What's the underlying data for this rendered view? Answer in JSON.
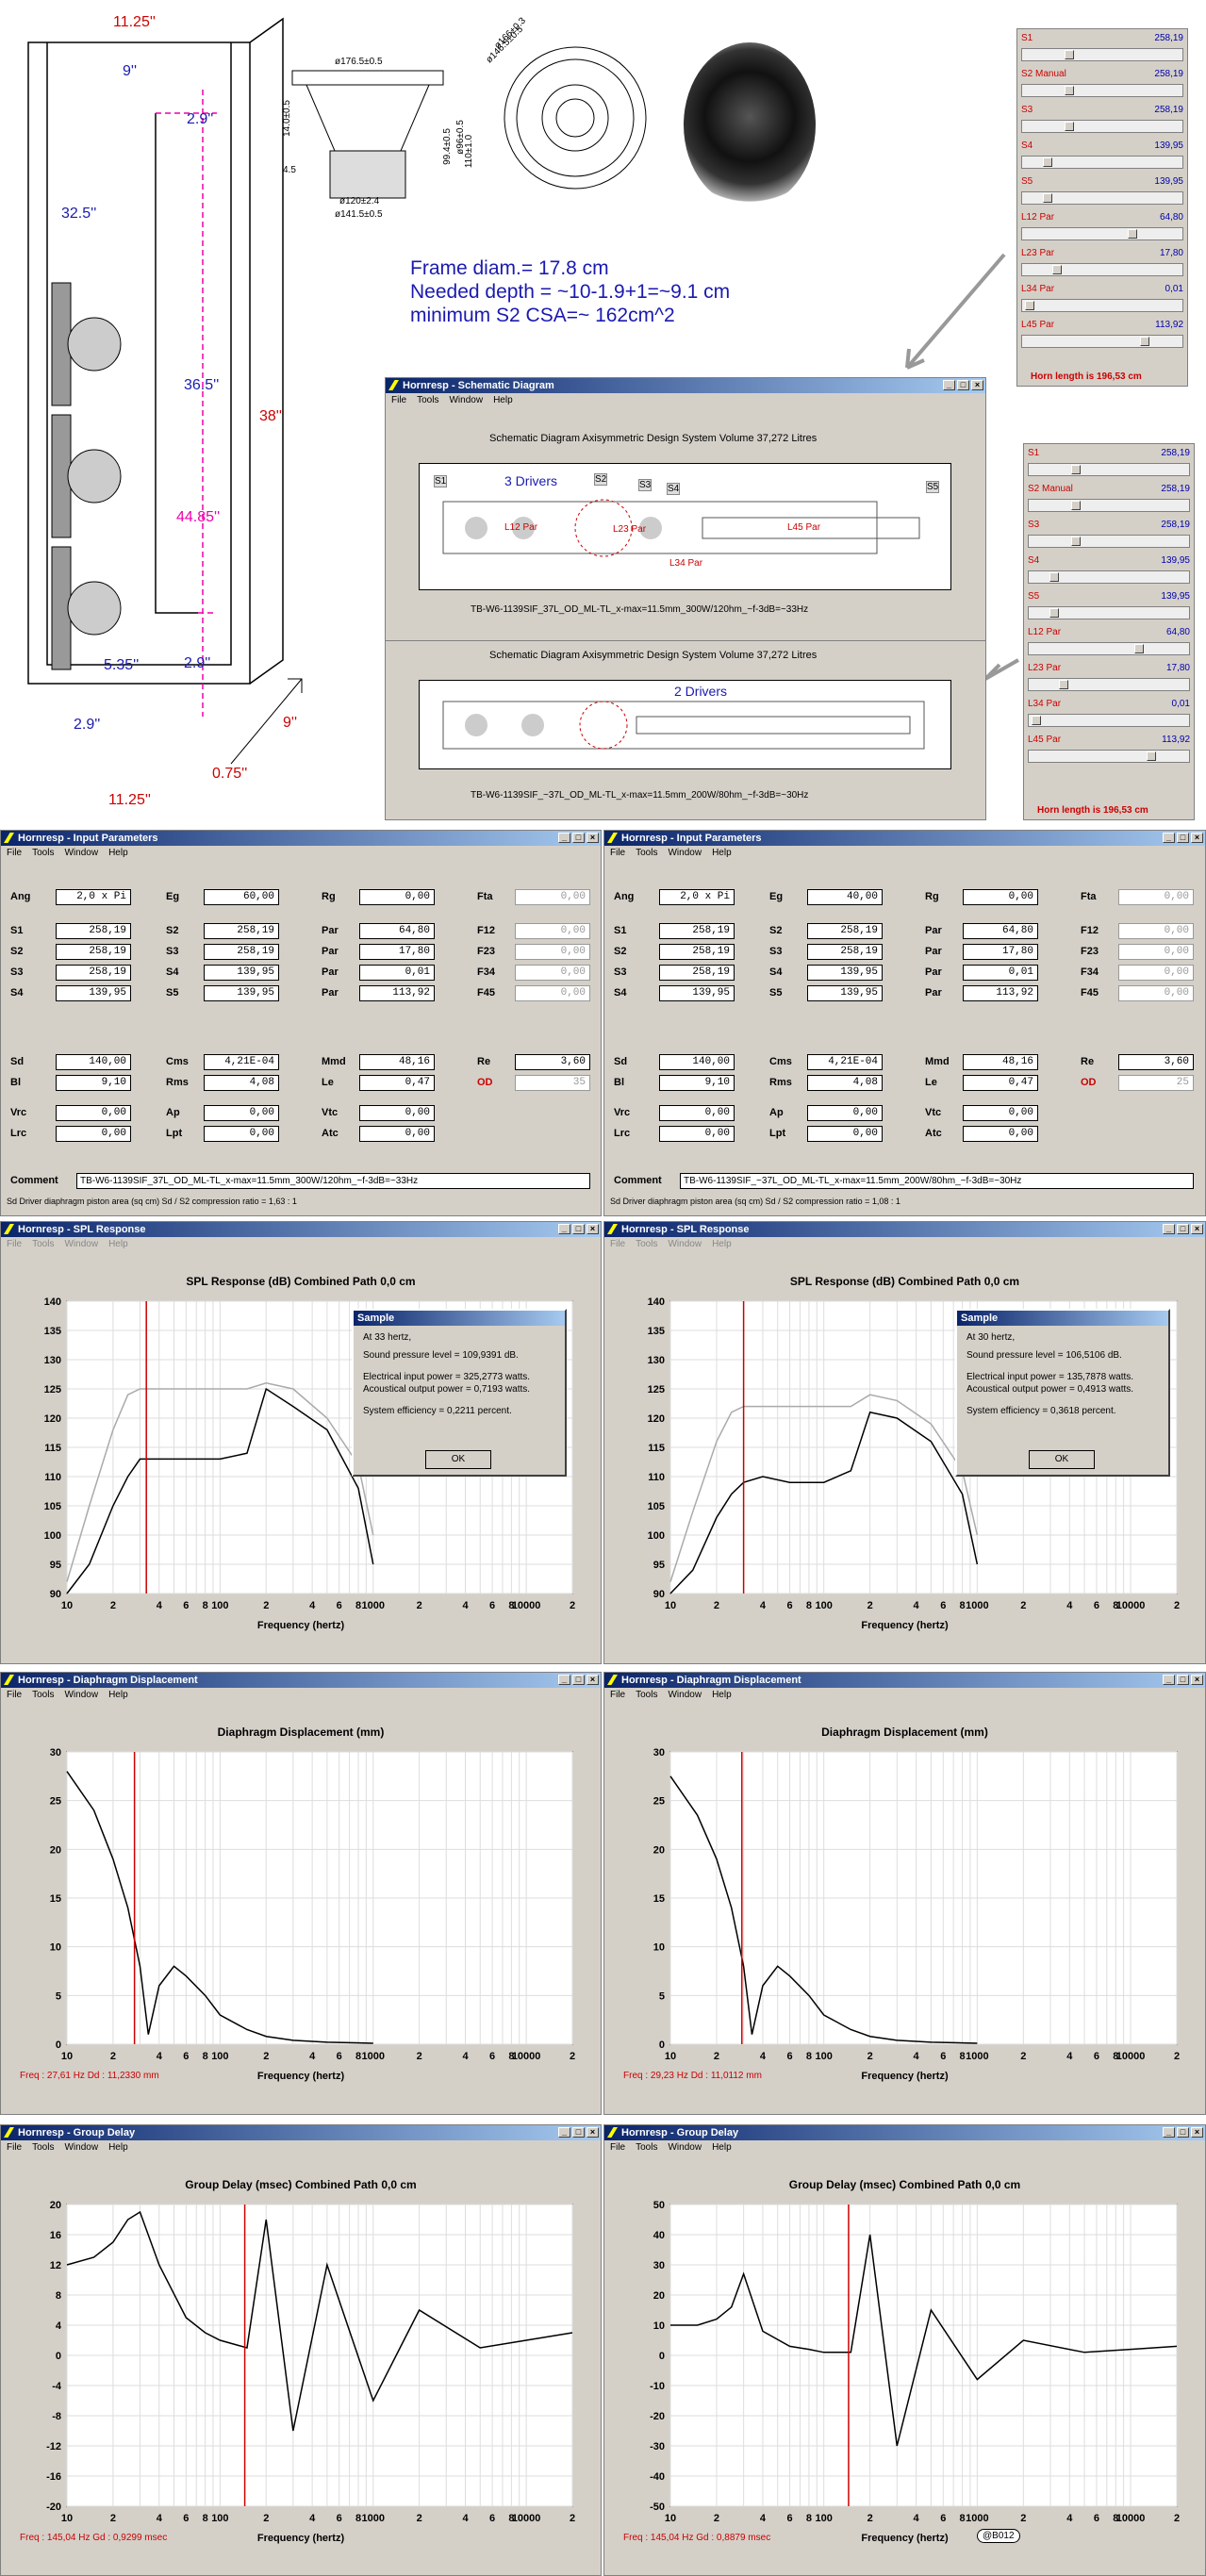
{
  "top": {
    "dims": {
      "w_top": "11.25''",
      "w_inner": "9''",
      "d_top": "2.9''",
      "h_a": "32.5''",
      "h_b": "36.5''",
      "h_total": "38''",
      "h_pink": "44.85''",
      "w_5": "5.35''",
      "d_bot": "2.9''",
      "w_bot": "2.9''",
      "w_9": "9''",
      "w_075": "0.75''",
      "w_bottom": "11.25''"
    },
    "driver": {
      "d1": "ø176.5±0.5",
      "d2": "ø120±2.4",
      "d3": "ø141.5±0.5",
      "d4": "ø96±0.5",
      "d5": "ø166±0.3",
      "d6": "ø146.5±0.5",
      "h1": "14.0±0.5",
      "h2": "110±1.0",
      "h3": "99.4±0.5",
      "h4": "4.5"
    },
    "text": [
      "Frame diam.=  17.8 cm",
      "Needed depth = ~10-1.9+1=~9.1 cm",
      "minimum S2 CSA=~ 162cm^2"
    ]
  },
  "sliders1": {
    "rows": [
      {
        "n": "S1",
        "v": "258,19",
        "p": 0.28
      },
      {
        "n": "S2 Manual",
        "v": "258,19",
        "p": 0.28
      },
      {
        "n": "S3",
        "v": "258,19",
        "p": 0.28
      },
      {
        "n": "S4",
        "v": "139,95",
        "p": 0.14
      },
      {
        "n": "S5",
        "v": "139,95",
        "p": 0.14
      },
      {
        "n": "L12 Par",
        "v": "64,80",
        "p": 0.7
      },
      {
        "n": "L23 Par",
        "v": "17,80",
        "p": 0.2
      },
      {
        "n": "L34 Par",
        "v": "0,01",
        "p": 0.02
      },
      {
        "n": "L45 Par",
        "v": "113,92",
        "p": 0.78
      }
    ],
    "horn": "Horn length is 196,53 cm"
  },
  "sliders2": {
    "rows": [
      {
        "n": "S1",
        "v": "258,19",
        "p": 0.28
      },
      {
        "n": "S2 Manual",
        "v": "258,19",
        "p": 0.28
      },
      {
        "n": "S3",
        "v": "258,19",
        "p": 0.28
      },
      {
        "n": "S4",
        "v": "139,95",
        "p": 0.14
      },
      {
        "n": "S5",
        "v": "139,95",
        "p": 0.14
      },
      {
        "n": "L12 Par",
        "v": "64,80",
        "p": 0.7
      },
      {
        "n": "L23 Par",
        "v": "17,80",
        "p": 0.2
      },
      {
        "n": "L34 Par",
        "v": "0,01",
        "p": 0.02
      },
      {
        "n": "L45 Par",
        "v": "113,92",
        "p": 0.78
      }
    ],
    "horn": "Horn length is 196,53 cm"
  },
  "schem": {
    "title": "Hornresp - Schematic Diagram",
    "menu": [
      "File",
      "Tools",
      "Window",
      "Help"
    ],
    "header": "Schematic Diagram   Axisymmetric Design   System Volume 37,272 Litres",
    "drivers3": "3 Drivers",
    "drivers2": "2 Drivers",
    "tags": [
      "S1",
      "S2",
      "S3",
      "S4",
      "S5"
    ],
    "pars": [
      "L12  Par",
      "L23  Par",
      "L34  Par",
      "L45  Par"
    ],
    "cap1": "TB-W6-1139SIF_37L_OD_ML-TL_x-max=11.5mm_300W/120hm_~f-3dB=~33Hz",
    "cap2": "TB-W6-1139SIF_~37L_OD_ML-TL_x-max=11.5mm_200W/80hm_~f-3dB=~30Hz"
  },
  "win": {
    "menu": [
      "File",
      "Tools",
      "Window",
      "Help"
    ],
    "input": "Hornresp - Input Parameters",
    "spl": "Hornresp - SPL Response",
    "disp": "Hornresp - Diaphragm Displacement",
    "gd": "Hornresp - Group Delay"
  },
  "input": [
    {
      "Ang": "2,0 x Pi",
      "Eg": "60,00",
      "Rg": "0,00",
      "Fta": "0,00",
      "S1": "258,19",
      "S2": "258,19",
      "S2p": "64,80",
      "F12": "0,00",
      "S2b": "258,19",
      "S3": "258,19",
      "S3p": "17,80",
      "F23": "0,00",
      "S3b": "258,19",
      "S4": "139,95",
      "S4p": "0,01",
      "F34": "0,00",
      "S4b": "139,95",
      "S5": "139,95",
      "S5p": "113,92",
      "F45": "0,00",
      "Sd": "140,00",
      "Cms": "4,21E-04",
      "Mmd": "48,16",
      "Re": "3,60",
      "Bl": "9,10",
      "Rms": "4,08",
      "Le": "0,47",
      "OD": "35",
      "Vrc": "0,00",
      "Ap": "0,00",
      "Vtc": "0,00",
      "Lrc": "0,00",
      "Lpt": "0,00",
      "Atc": "0,00",
      "comment": "TB-W6-1139SIF_37L_OD_ML-TL_x-max=11.5mm_300W/120hm_~f-3dB=~33Hz",
      "status": "Sd   Driver diaphragm piston area (sq cm)   Sd / S2 compression ratio = 1,63 : 1"
    },
    {
      "Ang": "2,0 x Pi",
      "Eg": "40,00",
      "Rg": "0,00",
      "Fta": "0,00",
      "S1": "258,19",
      "S2": "258,19",
      "S2p": "64,80",
      "F12": "0,00",
      "S2b": "258,19",
      "S3": "258,19",
      "S3p": "17,80",
      "F23": "0,00",
      "S3b": "258,19",
      "S4": "139,95",
      "S4p": "0,01",
      "F34": "0,00",
      "S4b": "139,95",
      "S5": "139,95",
      "S5p": "113,92",
      "F45": "0,00",
      "Sd": "140,00",
      "Cms": "4,21E-04",
      "Mmd": "48,16",
      "Re": "3,60",
      "Bl": "9,10",
      "Rms": "4,08",
      "Le": "0,47",
      "OD": "25",
      "Vrc": "0,00",
      "Ap": "0,00",
      "Vtc": "0,00",
      "Lrc": "0,00",
      "Lpt": "0,00",
      "Atc": "0,00",
      "comment": "TB-W6-1139SIF_~37L_OD_ML-TL_x-max=11.5mm_200W/80hm_~f-3dB=~30Hz",
      "status": "Sd   Driver diaphragm piston area (sq cm)   Sd / S2 compression ratio = 1,08 : 1"
    }
  ],
  "labels": {
    "Ang": "Ang",
    "Eg": "Eg",
    "Rg": "Rg",
    "Fta": "Fta",
    "S1": "S1",
    "S2": "S2",
    "S3": "S3",
    "S4": "S4",
    "S5": "S5",
    "Par": "Par",
    "F12": "F12",
    "F23": "F23",
    "F34": "F34",
    "F45": "F45",
    "Sd": "Sd",
    "Cms": "Cms",
    "Mmd": "Mmd",
    "Re": "Re",
    "Bl": "Bl",
    "Rms": "Rms",
    "Le": "Le",
    "OD": "OD",
    "Vrc": "Vrc",
    "Ap": "Ap",
    "Vtc": "Vtc",
    "Lrc": "Lrc",
    "Lpt": "Lpt",
    "Atc": "Atc",
    "Comment": "Comment"
  },
  "spl": [
    {
      "title": "SPL Response (dB)   Combined   Path 0,0 cm",
      "xlabel": "Frequency (hertz)",
      "dlg": {
        "t": "Sample",
        "l1": "At 33 hertz,",
        "l2": "Sound pressure level = 109,9391 dB.",
        "l3": "Electrical input power = 325,2773 watts.",
        "l4": "Acoustical output power = 0,7193 watts.",
        "l5": "System efficiency = 0,2211 percent.",
        "ok": "OK"
      }
    },
    {
      "title": "SPL Response (dB)   Combined   Path 0,0 cm",
      "xlabel": "Frequency (hertz)",
      "dlg": {
        "t": "Sample",
        "l1": "At 30 hertz,",
        "l2": "Sound pressure level = 106,5106 dB.",
        "l3": "Electrical input power = 135,7878 watts.",
        "l4": "Acoustical output power = 0,4913 watts.",
        "l5": "System efficiency = 0,3618 percent.",
        "ok": "OK"
      }
    }
  ],
  "disp": [
    {
      "title": "Diaphragm Displacement (mm)",
      "xlabel": "Frequency (hertz)",
      "readout": "Freq : 27,61 Hz     Dd : 11,2330 mm"
    },
    {
      "title": "Diaphragm Displacement (mm)",
      "xlabel": "Frequency (hertz)",
      "readout": "Freq : 29,23 Hz     Dd : 11,0112 mm"
    }
  ],
  "gd": [
    {
      "title": "Group Delay (msec)   Combined   Path 0,0 cm",
      "xlabel": "Frequency (hertz)",
      "readout": "Freq : 145,04 Hz     Gd : 0,9299 msec"
    },
    {
      "title": "Group Delay (msec)   Combined   Path 0,0 cm",
      "xlabel": "Frequency (hertz)",
      "readout": "Freq : 145,04 Hz     Gd : 0,8879 msec",
      "badge": "@B012"
    }
  ],
  "xticks": [
    "10",
    "2",
    "4",
    "6",
    "8",
    "100",
    "2",
    "4",
    "6",
    "8",
    "1000",
    "2",
    "4",
    "6",
    "8",
    "10000",
    "2"
  ],
  "chart_data": [
    {
      "type": "line",
      "title": "SPL Response (dB)   Combined   Path 0,0 cm",
      "xlabel": "Frequency (hertz)",
      "ylim": [
        90,
        140
      ],
      "yticks": [
        90,
        95,
        100,
        105,
        110,
        115,
        120,
        125,
        130,
        135,
        140
      ],
      "x": [
        10,
        14,
        20,
        25,
        30,
        40,
        60,
        80,
        100,
        150,
        200,
        300,
        500,
        800,
        1000
      ],
      "series": [
        {
          "values": [
            90,
            95,
            105,
            110,
            113,
            113,
            113,
            113,
            113,
            114,
            125,
            122,
            118,
            108,
            95
          ]
        },
        {
          "values": [
            92,
            105,
            118,
            124,
            125,
            125,
            125,
            125,
            125,
            125,
            126,
            125,
            120,
            112,
            100
          ]
        }
      ],
      "marker": 33
    },
    {
      "type": "line",
      "title": "SPL Response (dB)   Combined   Path 0,0 cm",
      "xlabel": "Frequency (hertz)",
      "ylim": [
        90,
        140
      ],
      "yticks": [
        90,
        95,
        100,
        105,
        110,
        115,
        120,
        125,
        130,
        135,
        140
      ],
      "x": [
        10,
        14,
        20,
        25,
        30,
        40,
        60,
        80,
        100,
        150,
        200,
        300,
        500,
        800,
        1000
      ],
      "series": [
        {
          "values": [
            90,
            94,
            103,
            107,
            109,
            110,
            109,
            109,
            109,
            111,
            121,
            120,
            116,
            107,
            95
          ]
        },
        {
          "values": [
            92,
            104,
            116,
            121,
            122,
            122,
            122,
            122,
            122,
            122,
            124,
            123,
            119,
            111,
            100
          ]
        }
      ],
      "marker": 30
    },
    {
      "type": "line",
      "title": "Diaphragm Displacement (mm)",
      "xlabel": "Frequency (hertz)",
      "ylim": [
        0,
        30
      ],
      "yticks": [
        0,
        5,
        10,
        15,
        20,
        25,
        30
      ],
      "x": [
        10,
        15,
        20,
        25,
        30,
        34,
        40,
        50,
        60,
        80,
        100,
        150,
        200,
        300,
        500,
        1000
      ],
      "series": [
        {
          "values": [
            28,
            24,
            19,
            14,
            8,
            1,
            6,
            8,
            7,
            5,
            3,
            1.5,
            0.8,
            0.4,
            0.2,
            0.1
          ]
        }
      ],
      "marker": 27.61
    },
    {
      "type": "line",
      "title": "Diaphragm Displacement (mm)",
      "xlabel": "Frequency (hertz)",
      "ylim": [
        0,
        30
      ],
      "yticks": [
        0,
        5,
        10,
        15,
        20,
        25,
        30
      ],
      "x": [
        10,
        15,
        20,
        25,
        30,
        34,
        40,
        50,
        60,
        80,
        100,
        150,
        200,
        300,
        500,
        1000
      ],
      "series": [
        {
          "values": [
            27.5,
            23.5,
            19,
            14,
            8,
            1,
            6,
            8,
            7,
            5,
            3,
            1.5,
            0.8,
            0.4,
            0.2,
            0.1
          ]
        }
      ],
      "marker": 29.23
    },
    {
      "type": "line",
      "title": "Group Delay (msec)   Combined   Path 0,0 cm",
      "xlabel": "Frequency (hertz)",
      "ylim": [
        -20,
        20
      ],
      "yticks": [
        -20,
        -16,
        -12,
        -8,
        -4,
        0,
        4,
        8,
        12,
        16,
        20
      ],
      "x": [
        10,
        15,
        20,
        25,
        30,
        40,
        60,
        80,
        100,
        150,
        200,
        300,
        500,
        1000,
        2000,
        5000,
        10000,
        20000
      ],
      "series": [
        {
          "values": [
            12,
            13,
            15,
            18,
            19,
            12,
            5,
            3,
            2,
            1,
            18,
            -10,
            12,
            -6,
            6,
            1,
            2,
            3
          ]
        }
      ],
      "marker": 145.04
    },
    {
      "type": "line",
      "title": "Group Delay (msec)   Combined   Path 0,0 cm",
      "xlabel": "Frequency (hertz)",
      "ylim": [
        -50,
        50
      ],
      "yticks": [
        -50,
        -40,
        -30,
        -20,
        -10,
        0,
        10,
        20,
        30,
        40,
        50
      ],
      "x": [
        10,
        15,
        20,
        25,
        30,
        40,
        60,
        80,
        100,
        150,
        200,
        300,
        500,
        1000,
        2000,
        5000,
        10000,
        20000
      ],
      "series": [
        {
          "values": [
            10,
            10,
            12,
            16,
            27,
            8,
            3,
            2,
            1,
            1,
            40,
            -30,
            15,
            -8,
            5,
            1,
            2,
            3
          ]
        }
      ],
      "marker": 145.04
    }
  ]
}
